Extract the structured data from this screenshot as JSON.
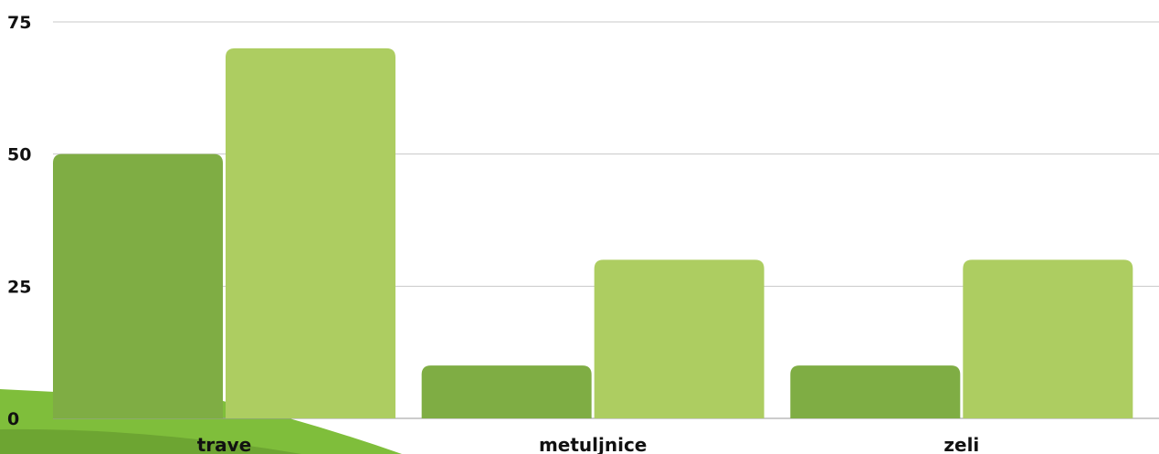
{
  "chart_data": {
    "type": "bar",
    "categories": [
      "trave",
      "metuljnice",
      "zeli"
    ],
    "series": [
      {
        "values": [
          50,
          10,
          10
        ],
        "color": "#7fad44"
      },
      {
        "values": [
          70,
          30,
          30
        ],
        "color": "#adcd61"
      }
    ],
    "yticks": [
      "0",
      "25",
      "50",
      "75"
    ],
    "ylim": [
      0,
      75
    ],
    "grid": true,
    "grid_color": "#c8c8c8",
    "decoration_color": "#7fbe3b"
  }
}
